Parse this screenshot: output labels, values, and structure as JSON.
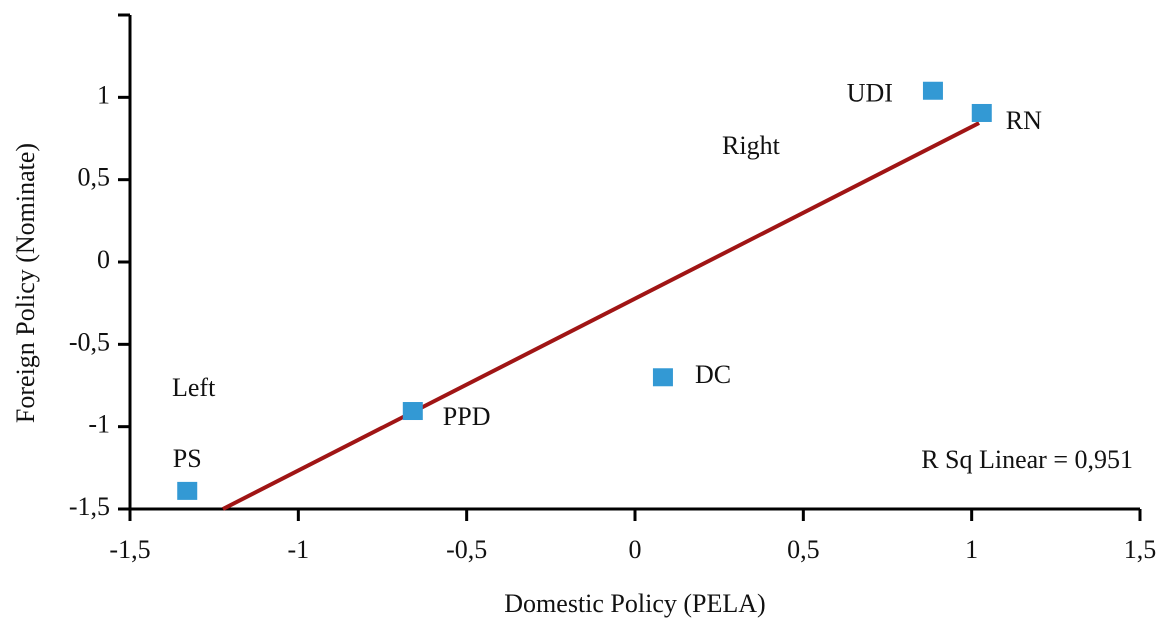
{
  "chart_data": {
    "type": "scatter",
    "x_label": "Domestic Policy (PELA)",
    "y_label": "Foreign Policy (Nominate)",
    "labels": [
      "UDI",
      "RN",
      "DC",
      "PPD",
      "PS"
    ],
    "x": [
      0.885,
      1.03,
      0.083,
      -0.66,
      -1.33
    ],
    "values": [
      1.04,
      0.905,
      -0.7,
      -0.905,
      -1.39
    ],
    "color": "#3399d4",
    "fit_line": {
      "x": [
        -1.224,
        1.022
      ],
      "y": [
        -1.5,
        0.844
      ],
      "color": "#a01515"
    },
    "annotations": [
      "Right",
      "Left",
      "R Sq Linear = 0,951"
    ],
    "xlim": [
      -1.5,
      1.5
    ],
    "ylim": [
      -1.5,
      1.5
    ],
    "xticks": [
      {
        "value": -1.5,
        "label": "-1,5"
      },
      -1,
      {
        "value": -0.5,
        "label": "-0,5"
      },
      0,
      {
        "value": 0.5,
        "label": "0,5"
      },
      1,
      {
        "value": 1.5,
        "label": "1,5"
      }
    ],
    "yticks": [
      {
        "value": -1.5,
        "label": "-1,5"
      },
      -1,
      {
        "value": -0.5,
        "label": "-0,5"
      },
      0,
      {
        "value": 0.5,
        "label": "0,5"
      },
      1
    ],
    "grid": false
  }
}
